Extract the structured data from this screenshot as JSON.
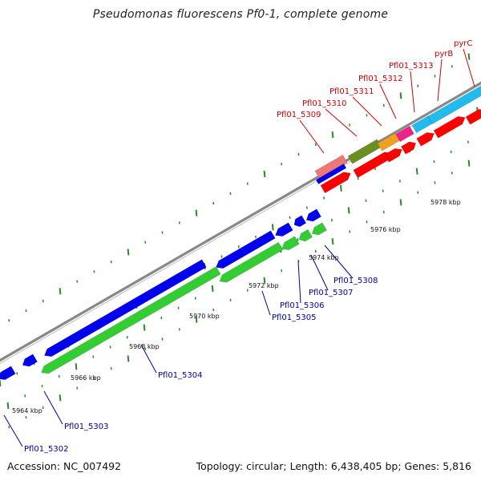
{
  "title": "Pseudomonas fluorescens Pf0-1, complete genome",
  "footer": {
    "accession": "Accession: NC_007492",
    "topology": "Topology: circular; Length: 6,438,405 bp; Genes: 5,816"
  },
  "colors": {
    "forward_cds": "#ff0000",
    "reverse_cds": "#0000ee",
    "reverse_green": "#33cc33",
    "backbone": "#888888",
    "tick": "#2a8a2a",
    "label_red": "#cc0000",
    "label_blue": "#0000a0"
  },
  "scale_labels": [
    "5964 kbp",
    "5966 kbp",
    "5968 kbp",
    "5970 kbp",
    "5972 kbp",
    "5974 kbp",
    "5976 kbp",
    "5978 kbp"
  ],
  "upper_gene_labels": [
    "Pfl01_5309",
    "Pfl01_5310",
    "Pfl01_5311",
    "Pfl01_5312",
    "Pfl01_5313",
    "pyrB",
    "pyrC"
  ],
  "lower_gene_labels": [
    "Pfl01_5302",
    "Pfl01_5303",
    "Pfl01_5304",
    "Pfl01_5305",
    "Pfl01_5306",
    "Pfl01_5307",
    "Pfl01_5308"
  ]
}
